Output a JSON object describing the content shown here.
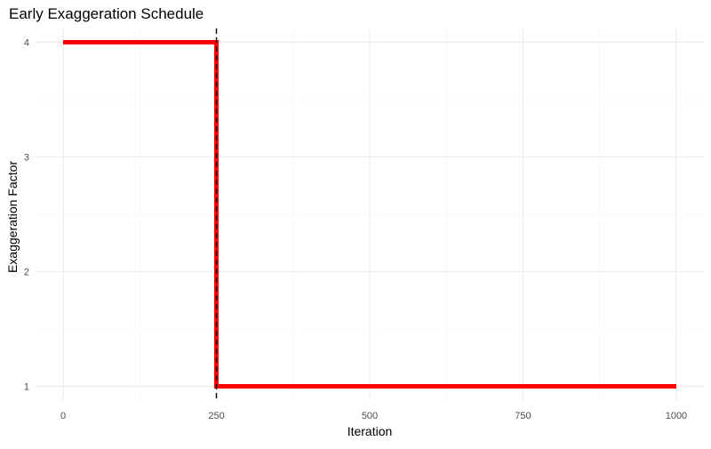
{
  "chart_data": {
    "type": "line",
    "title": "Early Exaggeration Schedule",
    "xlabel": "Iteration",
    "ylabel": "Exaggeration Factor",
    "xlim": [
      -45,
      1045
    ],
    "ylim": [
      0.88,
      4.12
    ],
    "x_ticks": [
      0,
      250,
      500,
      750,
      1000
    ],
    "y_ticks": [
      1,
      2,
      3,
      4
    ],
    "grid": true,
    "legend": "none",
    "series": [
      {
        "color": "#ff0000",
        "shape": "step",
        "x": [
          0,
          250,
          250,
          1000
        ],
        "y": [
          4,
          4,
          1,
          1
        ]
      }
    ],
    "annotations": [
      {
        "type": "vline",
        "x": 250,
        "style": "dashed",
        "color": "#000000"
      }
    ]
  }
}
